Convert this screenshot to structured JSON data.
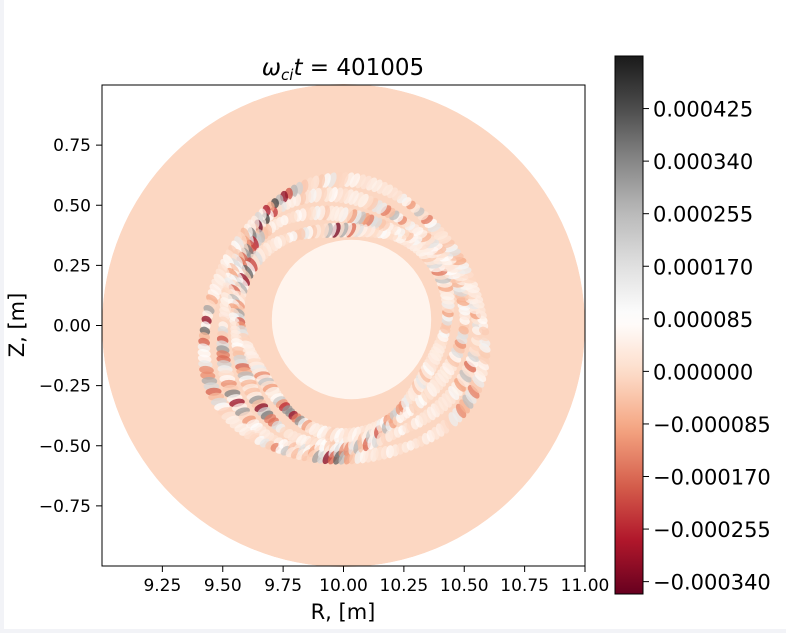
{
  "chart_data": {
    "type": "heatmap",
    "title_symbol": "ω",
    "title_subscript": "ci",
    "title_var": "t",
    "title_value": " = 401005",
    "xlabel": "R, [m]",
    "ylabel": "Z, [m]",
    "xlim": [
      9.0,
      11.0
    ],
    "ylim": [
      -1.0,
      1.0
    ],
    "x_ticks": [
      9.25,
      9.5,
      9.75,
      10.0,
      10.25,
      10.5,
      10.75,
      11.0
    ],
    "x_tick_labels": [
      "9.25",
      "9.50",
      "9.75",
      "10.00",
      "10.25",
      "10.50",
      "10.75",
      "11.00"
    ],
    "y_ticks": [
      0.75,
      0.5,
      0.25,
      0.0,
      -0.25,
      -0.5,
      -0.75
    ],
    "y_tick_labels": [
      "0.75",
      "0.50",
      "0.25",
      "0.00",
      "−0.25",
      "−0.50",
      "−0.75"
    ],
    "domain": {
      "shape": "circle",
      "center_r": 10.0,
      "center_z": 0.0,
      "radius": 1.0
    },
    "colorbar": {
      "colormap": "RdGy_r",
      "range": [
        -0.00036,
        0.00051
      ],
      "ticks": [
        0.000425,
        0.00034,
        0.000255,
        0.00017,
        8.5e-05,
        0.0,
        -8.5e-05,
        -0.00017,
        -0.000255,
        -0.00034
      ],
      "tick_labels": [
        "0.000425",
        "0.000340",
        "0.000255",
        "0.000170",
        "0.000085",
        "0.000000",
        "−0.000085",
        "−0.000170",
        "−0.000255",
        "−0.000340"
      ],
      "colors": [
        "#67001f",
        "#b2182b",
        "#d6604d",
        "#f4a582",
        "#fddbc7",
        "#ffffff",
        "#e0e0e0",
        "#bababa",
        "#878787",
        "#4d4d4d",
        "#1a1a1a"
      ]
    },
    "background_value": -1e-05,
    "structures": [
      {
        "name": "mode-ring",
        "mean_radius": 0.5,
        "width": 0.2,
        "peak_amplitude": 0.00045
      }
    ]
  }
}
